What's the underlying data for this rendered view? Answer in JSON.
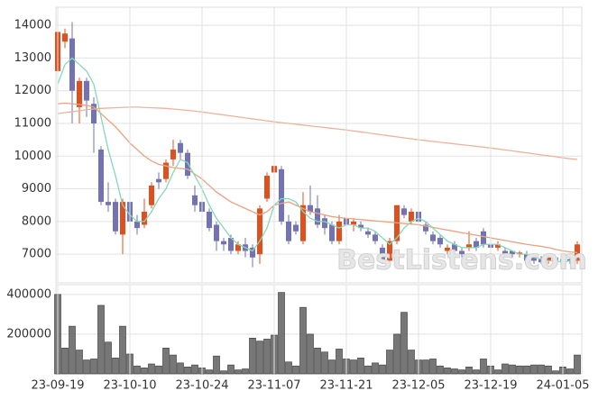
{
  "chart_data": [
    {
      "type": "candlestick",
      "open": [
        12600,
        13500,
        13600,
        11500,
        12300,
        11600,
        10200,
        8600,
        8600,
        7600,
        8600,
        8000,
        7900,
        8500,
        9300,
        9300,
        9900,
        10400,
        10100,
        8800,
        8600,
        8300,
        7900,
        7400,
        7500,
        7100,
        7300,
        7200,
        7000,
        8700,
        9500,
        9600,
        8000,
        7900,
        7400,
        8500,
        8400,
        8100,
        7900,
        7400,
        8100,
        7900,
        7900,
        7700,
        7600,
        7200,
        6800,
        7400,
        8400,
        8000,
        8300,
        7900,
        7600,
        7500,
        7100,
        7300,
        7100,
        7200,
        7400,
        7700,
        7300,
        7200,
        7100,
        7100,
        7000,
        7000,
        6900,
        6850,
        6800,
        6900,
        6850,
        6850,
        6800
      ],
      "high": [
        14200,
        13900,
        14100,
        12400,
        12400,
        11800,
        10300,
        9200,
        8700,
        8700,
        9300,
        8200,
        8700,
        9200,
        9500,
        9900,
        10500,
        10500,
        10200,
        9100,
        8800,
        8400,
        8000,
        7500,
        7600,
        7400,
        7500,
        7300,
        8500,
        9500,
        9900,
        9700,
        8200,
        8000,
        8900,
        9100,
        8800,
        8200,
        8000,
        8200,
        8200,
        8100,
        8000,
        7800,
        7700,
        7300,
        7500,
        8500,
        8500,
        8400,
        8400,
        8000,
        7700,
        7600,
        7300,
        7400,
        7200,
        7700,
        7500,
        7800,
        7400,
        7400,
        7200,
        7100,
        7100,
        7100,
        7000,
        6950,
        6950,
        6950,
        6900,
        6900,
        7400
      ],
      "low": [
        12300,
        13300,
        11000,
        11000,
        11200,
        10100,
        8500,
        8300,
        7600,
        7000,
        7900,
        7600,
        7800,
        8400,
        9000,
        9200,
        9700,
        9900,
        9300,
        8300,
        8200,
        7700,
        7100,
        7100,
        7000,
        7000,
        6900,
        6600,
        6700,
        8600,
        9400,
        7900,
        7300,
        7600,
        7300,
        8200,
        7800,
        7600,
        7300,
        7300,
        7800,
        7700,
        7700,
        7500,
        7300,
        6700,
        6700,
        7300,
        8100,
        7900,
        7900,
        7600,
        7300,
        7200,
        7000,
        7000,
        6900,
        7100,
        7100,
        7200,
        7100,
        7100,
        6900,
        6900,
        6900,
        6700,
        6700,
        6700,
        6700,
        6700,
        6700,
        6700,
        6700
      ],
      "close": [
        13800,
        13750,
        12000,
        12300,
        11700,
        11000,
        8600,
        8500,
        7700,
        8600,
        8000,
        7800,
        8300,
        9100,
        9200,
        9800,
        10200,
        10100,
        9400,
        8500,
        8300,
        7800,
        7400,
        7300,
        7100,
        7300,
        7100,
        6900,
        8400,
        9400,
        9700,
        8000,
        7400,
        7700,
        8500,
        8300,
        7900,
        7800,
        7400,
        8000,
        7900,
        8000,
        7800,
        7600,
        7400,
        6800,
        7400,
        8500,
        8200,
        8300,
        8000,
        7700,
        7400,
        7300,
        7200,
        7100,
        7000,
        7300,
        7200,
        7300,
        7200,
        7300,
        7000,
        7000,
        7050,
        6800,
        6800,
        6750,
        6900,
        6800,
        6750,
        6800,
        7300
      ],
      "up_color": "#e0501e",
      "down_color": "#7272b4",
      "series": [
        {
          "color": "#ebb49a",
          "values": [
            11300,
            11330,
            11360,
            11390,
            11420,
            11440,
            11460,
            11470,
            11480,
            11490,
            11500,
            11500,
            11490,
            11480,
            11470,
            11460,
            11440,
            11420,
            11400,
            11380,
            11350,
            11320,
            11290,
            11260,
            11230,
            11200,
            11170,
            11140,
            11110,
            11080,
            11050,
            11025,
            11000,
            10975,
            10950,
            10925,
            10900,
            10875,
            10850,
            10825,
            10800,
            10770,
            10740,
            10710,
            10680,
            10650,
            10620,
            10590,
            10560,
            10530,
            10500,
            10475,
            10450,
            10425,
            10400,
            10375,
            10350,
            10325,
            10300,
            10275,
            10250,
            10220,
            10190,
            10160,
            10130,
            10100,
            10070,
            10040,
            10010,
            9980,
            9950,
            9920,
            9900
          ]
        },
        {
          "color": "#e8a282",
          "values": [
            11600,
            11620,
            11600,
            11580,
            11550,
            11500,
            11300,
            11100,
            10900,
            10650,
            10400,
            10200,
            10000,
            9850,
            9750,
            9700,
            9650,
            9620,
            9600,
            9450,
            9300,
            9100,
            8900,
            8750,
            8600,
            8500,
            8400,
            8300,
            8200,
            8300,
            8500,
            8550,
            8600,
            8500,
            8400,
            8300,
            8250,
            8200,
            8150,
            8120,
            8100,
            8080,
            8060,
            8040,
            8020,
            8000,
            7980,
            7960,
            7940,
            7920,
            7900,
            7860,
            7820,
            7780,
            7740,
            7700,
            7660,
            7620,
            7580,
            7540,
            7500,
            7460,
            7420,
            7380,
            7340,
            7300,
            7270,
            7240,
            7200,
            7150,
            7100,
            7070,
            7050
          ]
        },
        {
          "color": "#86d8b6",
          "values": [
            12200,
            12800,
            13000,
            12800,
            12600,
            12200,
            11200,
            10200,
            9400,
            8500,
            8200,
            8000,
            8000,
            8300,
            8700,
            9000,
            9500,
            9900,
            9800,
            9400,
            9000,
            8500,
            8100,
            7800,
            7500,
            7300,
            7200,
            7100,
            7400,
            7800,
            8500,
            8700,
            8700,
            8600,
            8300,
            8100,
            8000,
            8000,
            7900,
            7800,
            7900,
            7900,
            7800,
            7800,
            7700,
            7500,
            7300,
            7500,
            7800,
            8000,
            8100,
            8000,
            7800,
            7600,
            7400,
            7300,
            7200,
            7200,
            7200,
            7300,
            7300,
            7300,
            7200,
            7100,
            7000,
            7000,
            6900,
            6850,
            6800,
            6800,
            6750,
            6800,
            6850
          ]
        }
      ],
      "ylim": [
        6150,
        14500
      ],
      "yticks": [
        7000,
        8000,
        9000,
        10000,
        11000,
        12000,
        13000,
        14000
      ],
      "watermark": "BestListens.com",
      "grid": true
    },
    {
      "type": "bar",
      "categories": [
        "23-09-19",
        null,
        null,
        null,
        null,
        null,
        null,
        null,
        null,
        null,
        "23-10-10",
        null,
        null,
        null,
        null,
        null,
        null,
        null,
        null,
        null,
        "23-10-24",
        null,
        null,
        null,
        null,
        null,
        null,
        null,
        null,
        null,
        "23-11-07",
        null,
        null,
        null,
        null,
        null,
        null,
        null,
        null,
        null,
        "23-11-21",
        null,
        null,
        null,
        null,
        null,
        null,
        null,
        null,
        null,
        "23-12-05",
        null,
        null,
        null,
        null,
        null,
        null,
        null,
        null,
        null,
        "23-12-19",
        null,
        null,
        null,
        null,
        null,
        null,
        null,
        null,
        null,
        "24-01-05",
        null,
        null
      ],
      "values": [
        400000,
        130000,
        240000,
        120000,
        70000,
        75000,
        345000,
        160000,
        80000,
        240000,
        100000,
        40000,
        30000,
        50000,
        40000,
        130000,
        95000,
        55000,
        35000,
        45000,
        30000,
        20000,
        90000,
        15000,
        45000,
        20000,
        25000,
        180000,
        165000,
        175000,
        195000,
        410000,
        60000,
        40000,
        335000,
        200000,
        130000,
        110000,
        70000,
        125000,
        75000,
        70000,
        80000,
        40000,
        55000,
        45000,
        120000,
        200000,
        310000,
        120000,
        70000,
        70000,
        75000,
        40000,
        30000,
        25000,
        20000,
        35000,
        20000,
        75000,
        40000,
        20000,
        50000,
        45000,
        40000,
        40000,
        45000,
        45000,
        40000,
        15000,
        35000,
        25000,
        95000
      ],
      "color": "#777777",
      "ylim": [
        0,
        440000
      ],
      "yticks": [
        200000,
        400000
      ],
      "grid": true
    }
  ]
}
